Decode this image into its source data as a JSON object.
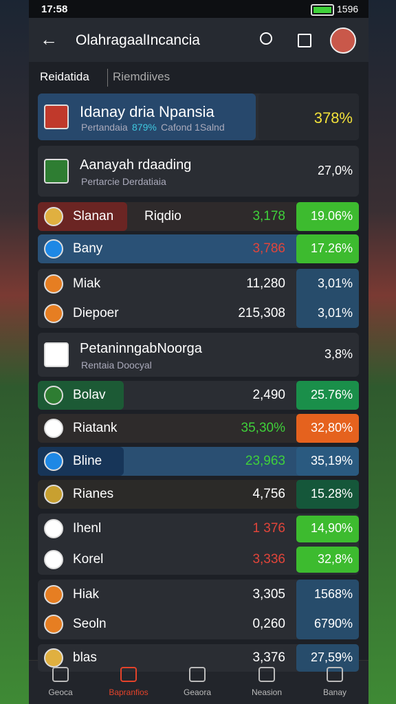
{
  "status": {
    "time": "17:58",
    "battery": "1596"
  },
  "header": {
    "title": "OlahragaalIncancia"
  },
  "tabs": [
    "Reidatida",
    "Riemdiives"
  ],
  "cards": [
    {
      "items": [
        {
          "name": "Idanay dria Npansia",
          "sub": [
            "Pertandaia",
            "879%",
            "Cafond 1Salnd"
          ],
          "percent": "378%"
        }
      ]
    },
    {
      "items": [
        {
          "name": "Aanayah rdaading",
          "sub": [
            "Pertarcie Derdatiaia"
          ],
          "percent": "27,0%"
        }
      ]
    },
    {
      "items": [
        {
          "name": "Slanan",
          "tag": "Riqdio",
          "count": "3,178",
          "percent": "19.06%"
        }
      ]
    },
    {
      "items": [
        {
          "name": "Bany",
          "count": "3,786",
          "percent": "17.26%"
        }
      ]
    },
    {
      "items": [
        {
          "name": "Miak",
          "count": "11,280",
          "percent": "3,01%"
        },
        {
          "name": "Diepoer",
          "count": "215,308",
          "percent": "3,01%"
        }
      ]
    },
    {
      "items": [
        {
          "name": "PetaninngabNoorga",
          "sub": [
            "Rentaia Doocyal"
          ],
          "percent": "3,8%"
        }
      ]
    },
    {
      "items": [
        {
          "name": "Bolav",
          "count": "2,490",
          "percent": "25.76%"
        }
      ]
    },
    {
      "items": [
        {
          "name": "Riatank",
          "count": "35,30%",
          "percent": "32,80%"
        }
      ]
    },
    {
      "items": [
        {
          "name": "Bline",
          "count": "23,963",
          "percent": "35,19%"
        }
      ]
    },
    {
      "items": [
        {
          "name": "Rianes",
          "count": "4,756",
          "percent": "15.28%"
        }
      ]
    },
    {
      "items": [
        {
          "name": "Ihenl",
          "count": "1 376",
          "percent": "14,90%"
        },
        {
          "name": "Korel",
          "count": "3,336",
          "percent": "32,8%"
        }
      ]
    },
    {
      "items": [
        {
          "name": "Hiak",
          "count": "3,305",
          "percent": "1568%"
        },
        {
          "name": "Seoln",
          "count": "0,260",
          "percent": "6790%"
        }
      ]
    },
    {
      "items": [
        {
          "name": "blas",
          "count": "3,376",
          "percent": "27,59%"
        }
      ]
    }
  ],
  "nav": [
    "Geoca",
    "Bapranfios",
    "Geaora",
    "Neasion",
    "Banay"
  ]
}
